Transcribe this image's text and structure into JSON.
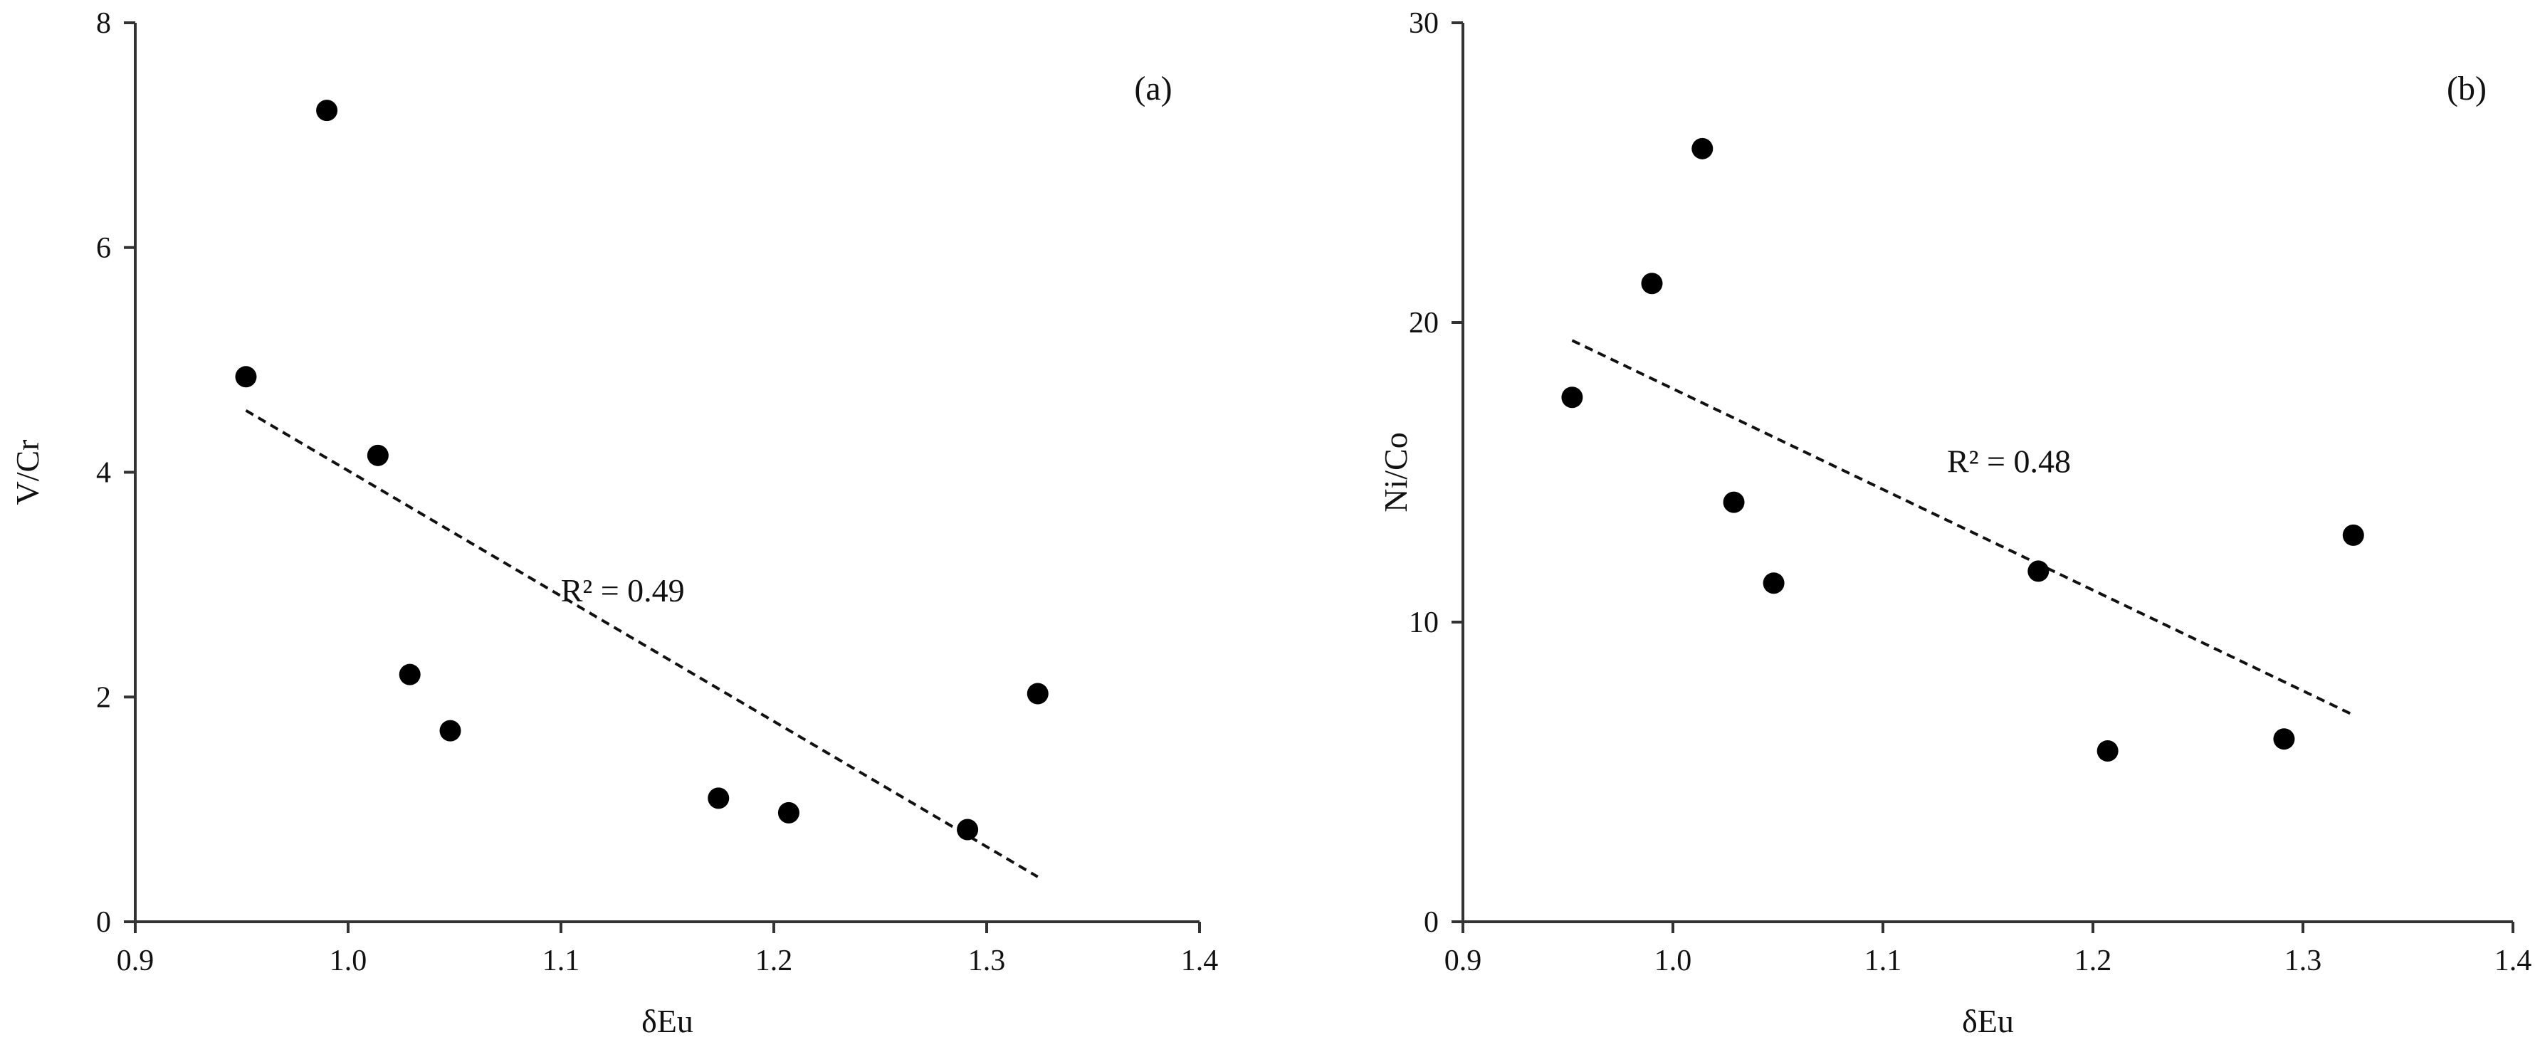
{
  "chart_data": [
    {
      "type": "scatter",
      "panel_label": "(a)",
      "xlabel": "δEu",
      "ylabel": "V/Cr",
      "xlim": [
        0.9,
        1.4
      ],
      "ylim": [
        0,
        8
      ],
      "xticks": [
        "0.9",
        "1.0",
        "1.1",
        "1.2",
        "1.3",
        "1.4"
      ],
      "yticks": [
        "0",
        "2",
        "4",
        "6",
        "8"
      ],
      "xtick_values": [
        0.9,
        1.0,
        1.1,
        1.2,
        1.3,
        1.4
      ],
      "ytick_values": [
        0,
        2,
        4,
        6,
        8
      ],
      "grid": false,
      "points": [
        {
          "x": 0.952,
          "y": 4.85
        },
        {
          "x": 0.99,
          "y": 7.22
        },
        {
          "x": 1.014,
          "y": 4.15
        },
        {
          "x": 1.029,
          "y": 2.2
        },
        {
          "x": 1.048,
          "y": 1.7
        },
        {
          "x": 1.174,
          "y": 1.1
        },
        {
          "x": 1.207,
          "y": 0.97
        },
        {
          "x": 1.291,
          "y": 0.82
        },
        {
          "x": 1.324,
          "y": 2.03
        }
      ],
      "trendline": {
        "style": "dashed",
        "x": [
          0.952,
          1.324
        ],
        "y": [
          4.55,
          0.4
        ]
      },
      "r2_text": "R² = 0.49",
      "r2_anchor": {
        "x": 1.129,
        "y": 2.85
      }
    },
    {
      "type": "scatter",
      "panel_label": "(b)",
      "xlabel": "δEu",
      "ylabel": "Ni/Co",
      "xlim": [
        0.9,
        1.4
      ],
      "ylim": [
        0,
        30
      ],
      "xticks": [
        "0.9",
        "1.0",
        "1.1",
        "1.2",
        "1.3",
        "1.4"
      ],
      "yticks": [
        "0",
        "10",
        "20",
        "30"
      ],
      "xtick_values": [
        0.9,
        1.0,
        1.1,
        1.2,
        1.3,
        1.4
      ],
      "ytick_values": [
        0,
        10,
        20,
        30
      ],
      "grid": false,
      "points": [
        {
          "x": 0.952,
          "y": 17.5
        },
        {
          "x": 0.99,
          "y": 21.3
        },
        {
          "x": 1.014,
          "y": 25.8
        },
        {
          "x": 1.029,
          "y": 14.0
        },
        {
          "x": 1.048,
          "y": 11.3
        },
        {
          "x": 1.174,
          "y": 11.7
        },
        {
          "x": 1.207,
          "y": 5.7
        },
        {
          "x": 1.291,
          "y": 6.1
        },
        {
          "x": 1.324,
          "y": 12.9
        }
      ],
      "trendline": {
        "style": "dashed",
        "x": [
          0.952,
          1.324
        ],
        "y": [
          19.4,
          6.9
        ]
      },
      "r2_text": "R² = 0.48",
      "r2_anchor": {
        "x": 1.16,
        "y": 15.0
      }
    }
  ]
}
